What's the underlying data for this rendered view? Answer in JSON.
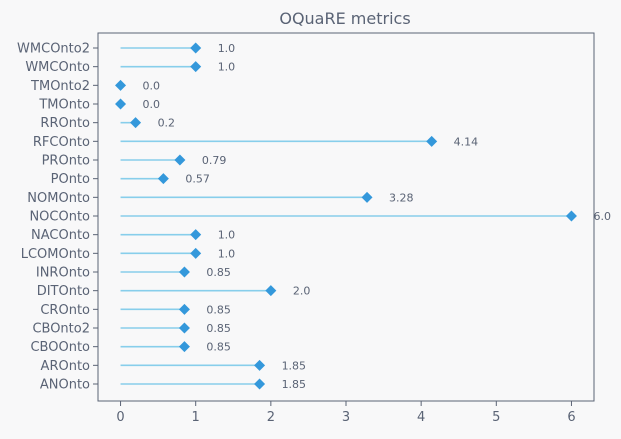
{
  "chart_data": {
    "type": "lollipop",
    "title": "OQuaRE metrics",
    "xlabel": "",
    "ylabel": "",
    "xlim": [
      -0.3,
      6.3
    ],
    "xticks": [
      0,
      1,
      2,
      3,
      4,
      5,
      6
    ],
    "grid": false,
    "categories": [
      "ANOnto",
      "AROnto",
      "CBOOnto",
      "CBOnto2",
      "CROnto",
      "DITOnto",
      "INROnto",
      "LCOMOnto",
      "NACOnto",
      "NOCOnto",
      "NOMOnto",
      "POnto",
      "PROnto",
      "RFCOnto",
      "RROnto",
      "TMOnto",
      "TMOnto2",
      "WMCOnto",
      "WMCOnto2"
    ],
    "values": [
      1.85,
      1.85,
      0.85,
      0.85,
      0.85,
      2.0,
      0.85,
      1.0,
      1.0,
      6.0,
      3.28,
      0.57,
      0.79,
      4.14,
      0.2,
      0.0,
      0.0,
      1.0,
      1.0
    ],
    "value_labels": [
      "1.85",
      "1.85",
      "0.85",
      "0.85",
      "0.85",
      "2.0",
      "0.85",
      "1.0",
      "1.0",
      "6.0",
      "3.28",
      "0.57",
      "0.79",
      "4.14",
      "0.2",
      "0.0",
      "0.0",
      "1.0",
      "1.0"
    ],
    "colors": {
      "stem": "#87ceeb",
      "marker": "#3498db",
      "text": "#5a6375",
      "axis": "#5a6375",
      "background": "#f8f8f9"
    }
  }
}
